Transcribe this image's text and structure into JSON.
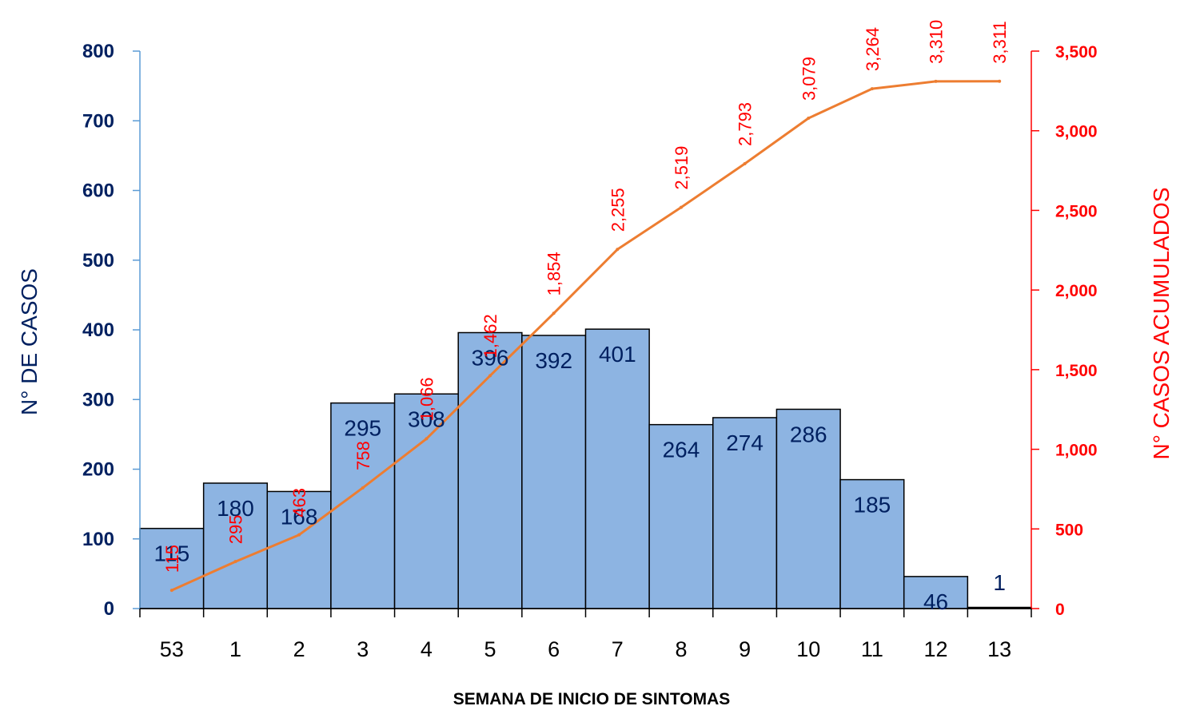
{
  "chart_data": {
    "type": "bar",
    "categories": [
      "53",
      "1",
      "2",
      "3",
      "4",
      "5",
      "6",
      "7",
      "8",
      "9",
      "10",
      "11",
      "12",
      "13"
    ],
    "series": [
      {
        "values": [
          115,
          180,
          168,
          295,
          308,
          396,
          392,
          401,
          264,
          274,
          286,
          185,
          46,
          1
        ],
        "axis": "left",
        "type": "bar"
      },
      {
        "values": [
          115,
          295,
          463,
          758,
          1066,
          1462,
          1854,
          2255,
          2519,
          2793,
          3079,
          3264,
          3310,
          3311
        ],
        "axis": "right",
        "type": "line"
      }
    ],
    "bar_value_labels": [
      "115",
      "180",
      "168",
      "295",
      "308",
      "396",
      "392",
      "401",
      "264",
      "274",
      "286",
      "185",
      "46",
      "1"
    ],
    "cumulative_value_labels": [
      "115",
      "295",
      "463",
      "758",
      "1,066",
      "1,462",
      "1,854",
      "2,255",
      "2,519",
      "2,793",
      "3,079",
      "3,264",
      "3,310",
      "3,311"
    ],
    "xlabel": "SEMANA DE INICIO DE SINTOMAS",
    "ylabel": "N° DE CASOS",
    "y2label": "N° CASOS ACUMULADOS",
    "ylim": [
      0,
      800
    ],
    "y2lim": [
      0,
      3500
    ],
    "yticks": [
      "0",
      "100",
      "200",
      "300",
      "400",
      "500",
      "600",
      "700",
      "800"
    ],
    "y2ticks": [
      "0",
      "500",
      "1,000",
      "1,500",
      "2,000",
      "2,500",
      "3,000",
      "3,500"
    ],
    "grid": false,
    "legend": "none",
    "colors": {
      "bar_fill": "#8DB4E2",
      "bar_stroke": "#000000",
      "line": "#ED7D31",
      "left_axis": "#5B9BD5",
      "left_text": "#002060",
      "right_axis": "#FF0000",
      "right_text": "#FF0000",
      "title_text": "#000000"
    }
  }
}
